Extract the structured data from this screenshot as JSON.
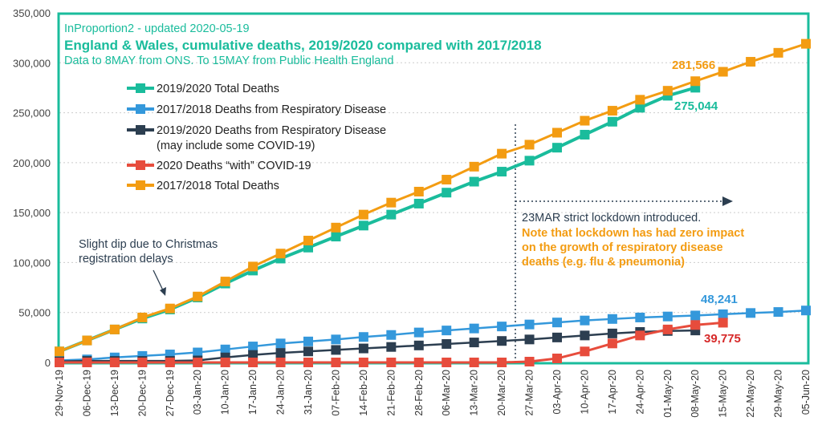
{
  "chart_data": {
    "type": "line",
    "header": {
      "source_line": "InProportion2 - updated 2020-05-19",
      "title": "England & Wales, cumulative deaths, 2019/2020 compared with 2017/2018",
      "subtitle": "Data to 8MAY from ONS. To 15MAY from Public Health England"
    },
    "ylim": [
      0,
      350000
    ],
    "yticks": [
      0,
      50000,
      100000,
      150000,
      200000,
      250000,
      300000,
      350000
    ],
    "ytick_labels": [
      "0",
      "50,000",
      "100,000",
      "150,000",
      "200,000",
      "250,000",
      "300,000",
      "350,000"
    ],
    "grid": true,
    "legend_position": "top-left",
    "x": [
      "29-Nov-19",
      "06-Dec-19",
      "13-Dec-19",
      "20-Dec-19",
      "27-Dec-19",
      "03-Jan-20",
      "10-Jan-20",
      "17-Jan-20",
      "24-Jan-20",
      "31-Jan-20",
      "07-Feb-20",
      "14-Feb-20",
      "21-Feb-20",
      "28-Feb-20",
      "06-Mar-20",
      "13-Mar-20",
      "20-Mar-20",
      "27-Mar-20",
      "03-Apr-20",
      "10-Apr-20",
      "17-Apr-20",
      "24-Apr-20",
      "01-May-20",
      "08-May-20",
      "15-May-20",
      "22-May-20",
      "29-May-20",
      "05-Jun-20"
    ],
    "series": [
      {
        "name": "2017/2018 Deaths from Respiratory Disease",
        "legend_line2": "",
        "color": "#3498db",
        "width": 2.5,
        "values": [
          2000,
          3000,
          5000,
          6500,
          8000,
          10000,
          13000,
          16000,
          19000,
          21000,
          23000,
          25500,
          27500,
          30000,
          32000,
          34000,
          36000,
          38000,
          40000,
          42000,
          43500,
          45000,
          46000,
          47000,
          48241,
          49500,
          50500,
          52000
        ]
      },
      {
        "name": "2019/2020 Deaths from Respiratory Disease",
        "legend_line2": "(may include some COVID-19)",
        "color": "#2c3e50",
        "width": 2.5,
        "values": [
          1000,
          1500,
          1500,
          1500,
          1500,
          2000,
          5000,
          7500,
          9500,
          11000,
          12500,
          14000,
          15500,
          17000,
          18500,
          20000,
          21500,
          23000,
          25000,
          27000,
          29000,
          30500,
          31500,
          32000,
          null,
          null,
          null,
          null
        ]
      },
      {
        "name": "2020 Deaths “with” COVID-19",
        "legend_line2": "",
        "color": "#e74c3c",
        "width": 3,
        "values": [
          0,
          0,
          0,
          0,
          0,
          0,
          0,
          0,
          0,
          0,
          0,
          0,
          0,
          0,
          0,
          0,
          0,
          800,
          4000,
          11000,
          19000,
          27000,
          33000,
          37500,
          39775,
          null,
          null,
          null
        ]
      },
      {
        "name": "2019/2020 Total Deaths",
        "legend_line2": "",
        "color": "#1abc9c",
        "width": 4,
        "values": [
          11000,
          22000,
          33000,
          44000,
          53000,
          65000,
          79000,
          92000,
          104000,
          115000,
          126000,
          137000,
          148000,
          159000,
          170000,
          181000,
          191000,
          202000,
          215000,
          228000,
          241000,
          255000,
          267000,
          275044,
          null,
          null,
          null,
          null
        ]
      },
      {
        "name": "2017/2018 Total Deaths",
        "legend_line2": "",
        "color": "#f39c12",
        "width": 3,
        "values": [
          11000,
          22000,
          33000,
          45000,
          54000,
          66000,
          81000,
          96000,
          109000,
          122000,
          135000,
          148000,
          160000,
          171000,
          183000,
          196000,
          209000,
          218000,
          230000,
          242000,
          252000,
          263000,
          272000,
          281566,
          291000,
          301000,
          310000,
          319000
        ]
      }
    ],
    "legend_order": [
      3,
      0,
      1,
      2,
      4
    ],
    "data_labels": [
      {
        "text": "281,566",
        "color": "#f39c12"
      },
      {
        "text": "275,044",
        "color": "#1abc9c"
      },
      {
        "text": "48,241",
        "color": "#3498db"
      },
      {
        "text": "39,775",
        "color": "#d62828"
      }
    ],
    "annotations": {
      "christmas_line1": "Slight dip due to Christmas",
      "christmas_line2": "registration delays",
      "lockdown_line1": "23MAR strict lockdown introduced.",
      "lockdown_note1": "Note that lockdown has had zero impact",
      "lockdown_note2": "on the growth of respiratory disease",
      "lockdown_note3": "deaths (e.g. flu & pneumonia)"
    },
    "colors": {
      "frame": "#1abc9c",
      "note": "#f39c12",
      "text_dark": "#2c3e50"
    }
  }
}
